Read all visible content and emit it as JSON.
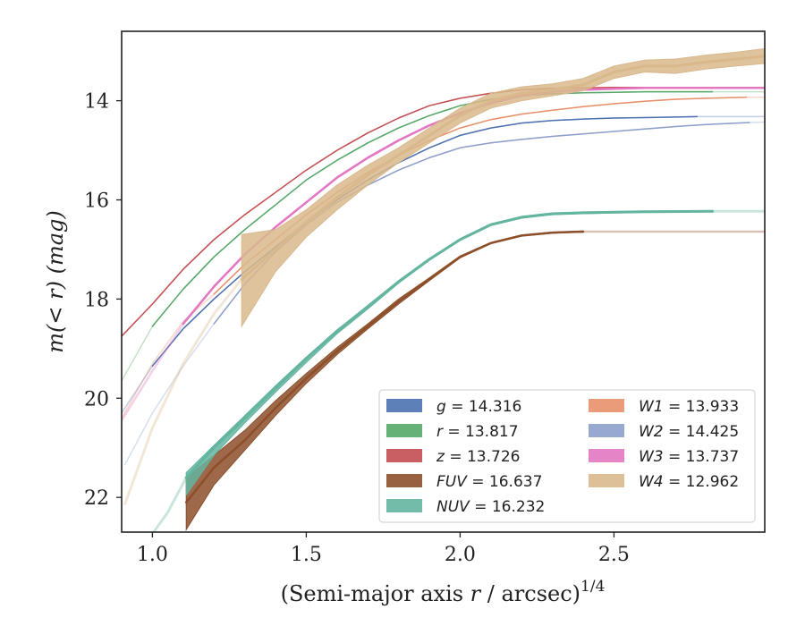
{
  "chart_data": {
    "type": "line",
    "title": "",
    "xlabel_main": "(Semi-major axis ",
    "xlabel_var": "r",
    "xlabel_tail": " / arcsec)",
    "xlabel_sup": "1/4",
    "ylabel_main": "m(< r) (mag)",
    "xlim": [
      0.9,
      2.99
    ],
    "ylim": [
      22.7,
      12.6
    ],
    "y_inverted": true,
    "xticks": [
      1.0,
      1.5,
      2.0,
      2.5
    ],
    "xtick_labels": [
      "1.0",
      "1.5",
      "2.0",
      "2.5"
    ],
    "yticks": [
      14,
      16,
      18,
      20,
      22
    ],
    "ytick_labels": [
      "14",
      "16",
      "18",
      "20",
      "22"
    ],
    "grid": false,
    "legend_position": "lower-right",
    "series": [
      {
        "name": "g",
        "label": "g = 14.316",
        "color": "#4c72b0",
        "width": 1.5,
        "solid_range": [
          1.0,
          2.77
        ],
        "x": [
          0.9,
          1.0,
          1.1,
          1.2,
          1.3,
          1.4,
          1.5,
          1.6,
          1.7,
          1.8,
          1.9,
          2.0,
          2.1,
          2.2,
          2.3,
          2.4,
          2.5,
          2.6,
          2.7,
          2.77,
          2.9,
          2.99
        ],
        "y": [
          20.3,
          19.35,
          18.6,
          18.0,
          17.45,
          16.95,
          16.45,
          16.0,
          15.6,
          15.25,
          14.95,
          14.7,
          14.55,
          14.45,
          14.4,
          14.37,
          14.35,
          14.34,
          14.33,
          14.32,
          14.32,
          14.32
        ]
      },
      {
        "name": "r",
        "label": "r = 13.817",
        "color": "#55a868",
        "width": 1.5,
        "solid_range": [
          0.92,
          2.82
        ],
        "x": [
          0.9,
          1.0,
          1.1,
          1.2,
          1.3,
          1.4,
          1.5,
          1.6,
          1.7,
          1.8,
          1.9,
          2.0,
          2.1,
          2.2,
          2.3,
          2.4,
          2.5,
          2.6,
          2.7,
          2.82,
          2.99
        ],
        "y": [
          19.65,
          18.55,
          17.8,
          17.15,
          16.6,
          16.1,
          15.6,
          15.2,
          14.85,
          14.55,
          14.3,
          14.1,
          13.97,
          13.9,
          13.86,
          13.84,
          13.83,
          13.82,
          13.82,
          13.82,
          13.82
        ]
      },
      {
        "name": "z",
        "label": "z = 13.726",
        "color": "#c44e52",
        "width": 1.5,
        "solid_range": [
          0.9,
          2.99
        ],
        "x": [
          0.9,
          1.0,
          1.1,
          1.2,
          1.3,
          1.4,
          1.5,
          1.6,
          1.7,
          1.8,
          1.9,
          2.0,
          2.1,
          2.2,
          2.3,
          2.4,
          2.5,
          2.6,
          2.7,
          2.8,
          2.99
        ],
        "y": [
          18.75,
          18.1,
          17.4,
          16.8,
          16.3,
          15.85,
          15.4,
          15.0,
          14.65,
          14.35,
          14.1,
          13.95,
          13.85,
          13.78,
          13.75,
          13.74,
          13.73,
          13.73,
          13.73,
          13.73,
          13.73
        ]
      },
      {
        "name": "FUV",
        "label": "FUV = 16.637",
        "color": "#8c4f2a",
        "width": 2.5,
        "band": true,
        "solid_range": [
          1.11,
          2.4
        ],
        "x": [
          1.11,
          1.2,
          1.3,
          1.4,
          1.5,
          1.6,
          1.7,
          1.8,
          1.9,
          2.0,
          2.1,
          2.2,
          2.3,
          2.4,
          2.6,
          2.99
        ],
        "y": [
          22.1,
          21.4,
          20.85,
          20.2,
          19.6,
          19.05,
          18.55,
          18.05,
          17.6,
          17.15,
          16.87,
          16.72,
          16.66,
          16.64,
          16.64,
          16.64
        ],
        "y_low": [
          21.6,
          21.15,
          20.65,
          20.05,
          19.5,
          18.98,
          18.5,
          18.0,
          17.57,
          17.13,
          16.86,
          16.71,
          16.65,
          16.63,
          16.64,
          16.64
        ],
        "y_high": [
          22.65,
          21.75,
          21.05,
          20.35,
          19.7,
          19.12,
          18.6,
          18.1,
          17.63,
          17.17,
          16.88,
          16.73,
          16.67,
          16.65,
          16.64,
          16.64
        ]
      },
      {
        "name": "NUV",
        "label": "NUV = 16.232",
        "color": "#64b5a0",
        "width": 3,
        "band": true,
        "solid_range": [
          1.11,
          2.82
        ],
        "x": [
          0.97,
          1.05,
          1.11,
          1.2,
          1.3,
          1.4,
          1.5,
          1.6,
          1.7,
          1.8,
          1.9,
          2.0,
          2.1,
          2.2,
          2.3,
          2.4,
          2.6,
          2.82,
          2.99
        ],
        "y": [
          23.0,
          22.3,
          21.6,
          21.0,
          20.4,
          19.8,
          19.2,
          18.65,
          18.15,
          17.65,
          17.2,
          16.8,
          16.5,
          16.35,
          16.28,
          16.26,
          16.24,
          16.23,
          16.23
        ],
        "y_low": [
          23.0,
          22.3,
          21.5,
          20.95,
          20.35,
          19.75,
          19.17,
          18.62,
          18.13,
          17.63,
          17.19,
          16.79,
          16.49,
          16.34,
          16.27,
          16.25,
          16.23,
          16.22,
          16.23
        ],
        "y_high": [
          23.0,
          22.3,
          21.95,
          21.15,
          20.5,
          19.88,
          19.28,
          18.7,
          18.2,
          17.68,
          17.22,
          16.82,
          16.52,
          16.37,
          16.3,
          16.28,
          16.25,
          16.24,
          16.23
        ]
      },
      {
        "name": "W1",
        "label": "W1 = 13.933",
        "color": "#e8906a",
        "width": 1.5,
        "solid_range": [
          1.2,
          2.93
        ],
        "x": [
          0.9,
          1.0,
          1.1,
          1.2,
          1.3,
          1.4,
          1.5,
          1.6,
          1.7,
          1.8,
          1.9,
          2.0,
          2.1,
          2.2,
          2.3,
          2.4,
          2.5,
          2.6,
          2.7,
          2.8,
          2.93,
          2.99
        ],
        "y": [
          20.4,
          19.3,
          18.45,
          17.9,
          17.3,
          16.8,
          16.3,
          15.85,
          15.45,
          15.1,
          14.8,
          14.55,
          14.38,
          14.27,
          14.19,
          14.12,
          14.06,
          14.01,
          13.97,
          13.95,
          13.93,
          13.93
        ]
      },
      {
        "name": "W2",
        "label": "W2 = 14.425",
        "color": "#8da0cb",
        "width": 1.5,
        "solid_range": [
          1.2,
          2.94
        ],
        "x": [
          0.91,
          1.0,
          1.1,
          1.2,
          1.3,
          1.4,
          1.5,
          1.6,
          1.7,
          1.8,
          1.9,
          2.0,
          2.1,
          2.2,
          2.3,
          2.4,
          2.5,
          2.6,
          2.7,
          2.8,
          2.94,
          2.99
        ],
        "y": [
          21.35,
          20.3,
          19.35,
          18.5,
          17.7,
          17.05,
          16.5,
          16.05,
          15.7,
          15.4,
          15.15,
          14.95,
          14.85,
          14.78,
          14.72,
          14.67,
          14.62,
          14.57,
          14.52,
          14.48,
          14.44,
          14.43
        ]
      },
      {
        "name": "W3",
        "label": "W3 = 13.737",
        "color": "#e377c2",
        "width": 2.5,
        "solid_range": [
          1.1,
          2.99
        ],
        "x": [
          0.9,
          1.0,
          1.1,
          1.2,
          1.3,
          1.4,
          1.5,
          1.6,
          1.7,
          1.8,
          1.9,
          2.0,
          2.1,
          2.2,
          2.3,
          2.4,
          2.5,
          2.6,
          2.7,
          2.8,
          2.99
        ],
        "y": [
          20.45,
          19.45,
          18.5,
          17.75,
          17.1,
          16.55,
          16.05,
          15.55,
          15.15,
          14.8,
          14.5,
          14.25,
          14.05,
          13.9,
          13.82,
          13.78,
          13.76,
          13.74,
          13.74,
          13.74,
          13.74
        ]
      },
      {
        "name": "W4",
        "label": "W4 = 12.962",
        "color": "#d9b98c",
        "width": 3,
        "band": true,
        "solid_range": [
          1.29,
          2.99
        ],
        "x": [
          0.91,
          1.0,
          1.1,
          1.2,
          1.29,
          1.4,
          1.5,
          1.6,
          1.7,
          1.8,
          1.9,
          2.0,
          2.1,
          2.2,
          2.3,
          2.4,
          2.5,
          2.6,
          2.7,
          2.8,
          2.9,
          2.99
        ],
        "y": [
          22.15,
          20.6,
          19.3,
          18.3,
          17.6,
          17.0,
          16.45,
          15.95,
          15.5,
          15.1,
          14.7,
          14.3,
          14.0,
          13.85,
          13.78,
          13.68,
          13.42,
          13.3,
          13.3,
          13.22,
          13.16,
          13.1
        ],
        "y_low": [
          22.15,
          20.6,
          19.3,
          18.3,
          16.7,
          16.6,
          16.2,
          15.7,
          15.3,
          14.95,
          14.55,
          14.15,
          13.85,
          13.72,
          13.66,
          13.55,
          13.3,
          13.18,
          13.16,
          13.08,
          13.02,
          12.95
        ],
        "y_high": [
          22.15,
          20.6,
          19.3,
          18.3,
          18.55,
          17.45,
          16.75,
          16.2,
          15.7,
          15.25,
          14.85,
          14.45,
          14.15,
          14.0,
          13.9,
          13.8,
          13.55,
          13.42,
          13.45,
          13.36,
          13.3,
          13.25
        ]
      }
    ],
    "legend": {
      "columns": [
        [
          "g",
          "r",
          "z",
          "FUV",
          "NUV"
        ],
        [
          "W1",
          "W2",
          "W3",
          "W4"
        ]
      ],
      "entries": {
        "g": {
          "var": "g",
          "value": " = 14.316"
        },
        "r": {
          "var": "r",
          "value": " = 13.817"
        },
        "z": {
          "var": "z",
          "value": " = 13.726"
        },
        "FUV": {
          "var": "FUV",
          "value": " = 16.637"
        },
        "NUV": {
          "var": "NUV",
          "value": " = 16.232"
        },
        "W1": {
          "var": "W1",
          "value": " = 13.933"
        },
        "W2": {
          "var": "W2",
          "value": " = 14.425"
        },
        "W3": {
          "var": "W3",
          "value": " = 13.737"
        },
        "W4": {
          "var": "W4",
          "value": " = 12.962"
        }
      }
    }
  }
}
